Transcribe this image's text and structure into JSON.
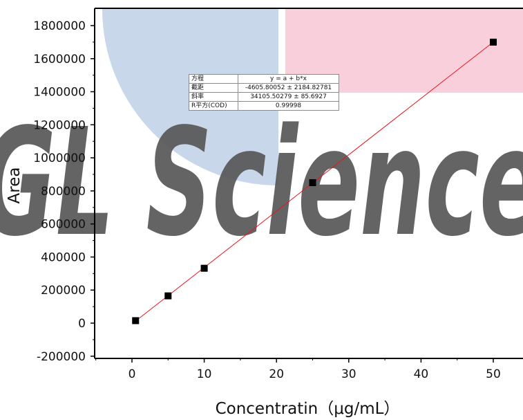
{
  "chart_data": {
    "type": "scatter",
    "xlabel": "Concentratin（μg/mL）",
    "ylabel": "Area",
    "xlim": [
      -5,
      55
    ],
    "ylim": [
      -200000,
      1900000
    ],
    "x_ticks": [
      "0",
      "10",
      "20",
      "30",
      "40",
      "50"
    ],
    "y_ticks": [
      "-200000",
      "0",
      "200000",
      "400000",
      "600000",
      "800000",
      "1000000",
      "1200000",
      "1400000",
      "1600000",
      "1800000"
    ],
    "points": [
      {
        "x": 0.5,
        "y": 15000
      },
      {
        "x": 5,
        "y": 165000
      },
      {
        "x": 10,
        "y": 332000
      },
      {
        "x": 25,
        "y": 850000
      },
      {
        "x": 50,
        "y": 1700000
      }
    ],
    "fit_line": {
      "intercept": -4605.80052,
      "slope": 34105.50279,
      "x_range": [
        0.5,
        50
      ],
      "color": "#e8151c"
    },
    "marker_color": "#000000",
    "fit_table": [
      {
        "key": "方程",
        "value": "y = a + b*x"
      },
      {
        "key": "截距",
        "value": "-4605.80052 ± 2184.82781"
      },
      {
        "key": "斜率",
        "value": "34105.50279 ± 85.6927"
      },
      {
        "key": "R平方(COD)",
        "value": "0.99998"
      }
    ],
    "watermark": {
      "text": "GL Science",
      "text_color": "#575757",
      "blue_color": "#c9d7ea",
      "pink_color": "#f9cfdb"
    }
  }
}
